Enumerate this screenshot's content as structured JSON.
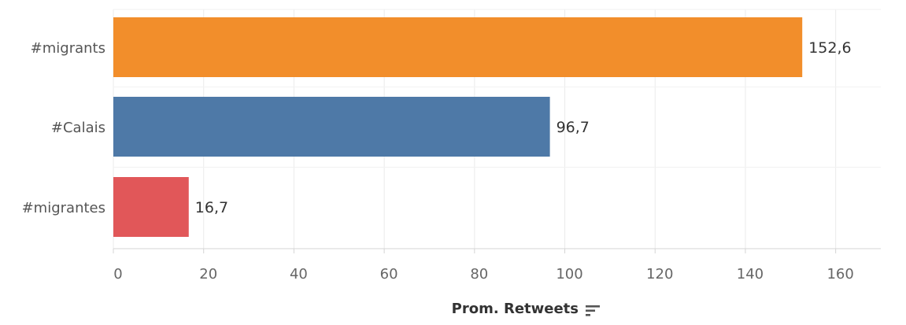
{
  "chart_data": {
    "type": "bar",
    "orientation": "horizontal",
    "categories": [
      "#migrants",
      "#Calais",
      "#migrantes"
    ],
    "values": [
      152.6,
      96.7,
      16.7
    ],
    "value_labels": [
      "152,6",
      "96,7",
      "16,7"
    ],
    "colors": [
      "#F28E2B",
      "#4E79A7",
      "#E15759"
    ],
    "xlabel": "Prom. Retweets",
    "ylabel": "",
    "title": "",
    "xlim": [
      0,
      170
    ],
    "xticks": [
      0,
      20,
      40,
      60,
      80,
      100,
      120,
      140,
      160
    ],
    "xtick_labels": [
      "0",
      "20",
      "40",
      "60",
      "80",
      "100",
      "120",
      "140",
      "160"
    ],
    "grid": true,
    "legend": "none",
    "sort_icon": "sort-descending-icon"
  }
}
